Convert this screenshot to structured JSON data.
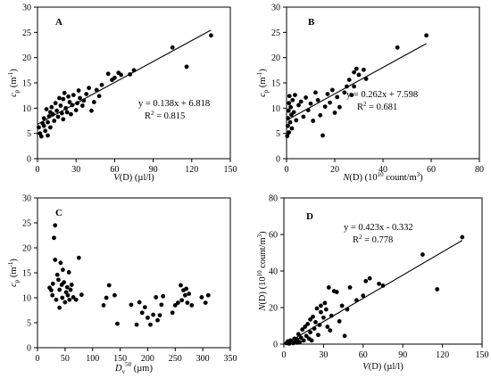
{
  "chart_data": [
    {
      "panel": "A",
      "type": "scatter",
      "xlabel_main": "V",
      "xlabel_rest": "(D)  (µl/l)",
      "ylabel_main": "c",
      "ylabel_sub": "p",
      "ylabel_rest": " (m",
      "ylabel_sup": "-1",
      "ylabel_close": ")",
      "xlim": [
        0,
        150
      ],
      "ylim": [
        0,
        30
      ],
      "xticks": [
        "0",
        "30",
        "60",
        "90",
        "120",
        "150"
      ],
      "yticks": [
        "0",
        "5",
        "10",
        "15",
        "20",
        "25",
        "30"
      ],
      "trend": {
        "slope": 0.138,
        "intercept": 6.818,
        "x_range": [
          0,
          135
        ]
      },
      "equation": "y = 0.138x + 6.818",
      "r2_label": "R",
      "r2_sup": "2",
      "r2_value": " = 0.815",
      "points": [
        [
          1,
          6.2
        ],
        [
          2,
          5.0
        ],
        [
          3,
          4.4
        ],
        [
          4,
          7.0
        ],
        [
          5,
          6.5
        ],
        [
          5,
          8.0
        ],
        [
          6,
          5.5
        ],
        [
          7,
          9.8
        ],
        [
          8,
          4.6
        ],
        [
          8,
          7.2
        ],
        [
          9,
          8.4
        ],
        [
          10,
          9.2
        ],
        [
          10,
          6.2
        ],
        [
          11,
          10.2
        ],
        [
          12,
          8.8
        ],
        [
          13,
          7.5
        ],
        [
          14,
          11.0
        ],
        [
          15,
          9.5
        ],
        [
          16,
          8.3
        ],
        [
          17,
          12.0
        ],
        [
          18,
          10.5
        ],
        [
          19,
          9.0
        ],
        [
          20,
          11.8
        ],
        [
          20,
          7.8
        ],
        [
          21,
          13.0
        ],
        [
          22,
          10.0
        ],
        [
          23,
          9.2
        ],
        [
          24,
          12.3
        ],
        [
          25,
          11.2
        ],
        [
          26,
          8.8
        ],
        [
          27,
          10.6
        ],
        [
          28,
          12.6
        ],
        [
          30,
          9.6
        ],
        [
          31,
          11.0
        ],
        [
          32,
          13.5
        ],
        [
          33,
          12.0
        ],
        [
          35,
          10.5
        ],
        [
          36,
          11.5
        ],
        [
          38,
          12.8
        ],
        [
          40,
          14.0
        ],
        [
          42,
          9.5
        ],
        [
          44,
          11.2
        ],
        [
          46,
          13.6
        ],
        [
          48,
          12.4
        ],
        [
          50,
          14.6
        ],
        [
          55,
          16.8
        ],
        [
          58,
          15.6
        ],
        [
          60,
          16.0
        ],
        [
          63,
          17.0
        ],
        [
          65,
          16.6
        ],
        [
          72,
          16.7
        ],
        [
          75,
          17.5
        ],
        [
          105,
          22.0
        ],
        [
          116,
          18.2
        ],
        [
          135,
          24.4
        ]
      ]
    },
    {
      "panel": "B",
      "type": "scatter",
      "xlabel_main": "N",
      "xlabel_rest": "(D)  (10",
      "xlabel_sup": "10",
      "xlabel_end": " count/m",
      "xlabel_sup2": "3",
      "xlabel_close": ")",
      "ylabel_main": "c",
      "ylabel_sub": "p",
      "ylabel_rest": " (m",
      "ylabel_sup": "-1",
      "ylabel_close": ")",
      "xlim": [
        0,
        80
      ],
      "ylim": [
        0,
        30
      ],
      "xticks": [
        "0",
        "20",
        "40",
        "60",
        "80"
      ],
      "yticks": [
        "0",
        "5",
        "10",
        "15",
        "20",
        "25",
        "30"
      ],
      "trend": {
        "slope": 0.262,
        "intercept": 7.598,
        "x_range": [
          0,
          58
        ]
      },
      "equation": "y = 0.262x + 7.598",
      "r2_label": "R",
      "r2_sup": "2",
      "r2_value": " = 0.681",
      "points": [
        [
          0.3,
          4.5
        ],
        [
          0.5,
          6.5
        ],
        [
          0.6,
          8.0
        ],
        [
          0.8,
          9.5
        ],
        [
          1.0,
          11.0
        ],
        [
          1.0,
          5.2
        ],
        [
          1.2,
          12.4
        ],
        [
          1.5,
          7.2
        ],
        [
          1.7,
          10.2
        ],
        [
          2.0,
          8.7
        ],
        [
          2.2,
          6.0
        ],
        [
          2.5,
          11.6
        ],
        [
          3.0,
          9.2
        ],
        [
          3.5,
          12.6
        ],
        [
          4.0,
          7.6
        ],
        [
          5.0,
          10.6
        ],
        [
          6.0,
          11.3
        ],
        [
          7.0,
          8.3
        ],
        [
          8.0,
          12.1
        ],
        [
          9.0,
          9.6
        ],
        [
          10,
          10.9
        ],
        [
          11,
          7.5
        ],
        [
          12,
          13.1
        ],
        [
          13,
          11.6
        ],
        [
          14,
          8.6
        ],
        [
          15,
          4.6
        ],
        [
          16,
          10.3
        ],
        [
          17,
          12.8
        ],
        [
          18,
          11.1
        ],
        [
          19,
          13.6
        ],
        [
          20,
          9.1
        ],
        [
          21,
          12.2
        ],
        [
          22,
          10.2
        ],
        [
          24,
          13.1
        ],
        [
          25,
          14.3
        ],
        [
          26,
          15.6
        ],
        [
          27,
          12.6
        ],
        [
          28,
          17.1
        ],
        [
          30,
          16.6
        ],
        [
          32,
          17.6
        ],
        [
          33,
          15.8
        ],
        [
          28,
          14.3
        ],
        [
          29,
          17.8
        ],
        [
          46,
          22.0
        ],
        [
          58,
          24.4
        ]
      ]
    },
    {
      "panel": "C",
      "type": "scatter",
      "xlabel_main": "D",
      "xlabel_sub": "v",
      "xlabel_sup": "50",
      "xlabel_rest": "  (µm)",
      "ylabel_main": "c",
      "ylabel_sub": "p",
      "ylabel_rest": " (m",
      "ylabel_sup": "-1",
      "ylabel_close": ")",
      "xlim": [
        0,
        350
      ],
      "ylim": [
        0,
        30
      ],
      "xticks": [
        "0",
        "50",
        "100",
        "150",
        "200",
        "250",
        "300",
        "350"
      ],
      "yticks": [
        "0",
        "5",
        "10",
        "15",
        "20",
        "25",
        "30"
      ],
      "points": [
        [
          22,
          12.0
        ],
        [
          25,
          11.5
        ],
        [
          27,
          10.5
        ],
        [
          28,
          12.8
        ],
        [
          30,
          22.0
        ],
        [
          32,
          24.5
        ],
        [
          32,
          17.6
        ],
        [
          34,
          9.6
        ],
        [
          36,
          14.6
        ],
        [
          38,
          13.6
        ],
        [
          40,
          11.6
        ],
        [
          40,
          8.0
        ],
        [
          42,
          17.0
        ],
        [
          44,
          12.6
        ],
        [
          45,
          10.0
        ],
        [
          46,
          15.6
        ],
        [
          48,
          13.1
        ],
        [
          50,
          9.1
        ],
        [
          52,
          11.1
        ],
        [
          54,
          12.1
        ],
        [
          55,
          10.5
        ],
        [
          57,
          15.1
        ],
        [
          58,
          9.6
        ],
        [
          60,
          11.6
        ],
        [
          62,
          12.6
        ],
        [
          65,
          10.1
        ],
        [
          70,
          9.6
        ],
        [
          75,
          18.0
        ],
        [
          80,
          10.6
        ],
        [
          120,
          8.5
        ],
        [
          125,
          10.0
        ],
        [
          130,
          12.5
        ],
        [
          140,
          10.5
        ],
        [
          145,
          4.8
        ],
        [
          170,
          8.6
        ],
        [
          180,
          4.6
        ],
        [
          185,
          9.1
        ],
        [
          190,
          7.0
        ],
        [
          195,
          8.1
        ],
        [
          200,
          6.0
        ],
        [
          205,
          4.6
        ],
        [
          210,
          6.6
        ],
        [
          215,
          10.1
        ],
        [
          218,
          5.5
        ],
        [
          222,
          6.5
        ],
        [
          225,
          8.6
        ],
        [
          228,
          10.3
        ],
        [
          245,
          7.0
        ],
        [
          250,
          8.5
        ],
        [
          255,
          9.0
        ],
        [
          260,
          12.5
        ],
        [
          262,
          9.5
        ],
        [
          265,
          11.5
        ],
        [
          268,
          10.5
        ],
        [
          270,
          11.8
        ],
        [
          272,
          9.0
        ],
        [
          275,
          10.8
        ],
        [
          280,
          8.5
        ],
        [
          298,
          10.1
        ],
        [
          305,
          9.0
        ],
        [
          310,
          10.5
        ]
      ]
    },
    {
      "panel": "D",
      "type": "scatter",
      "xlabel_main": "V",
      "xlabel_rest": "(D)  (µl/l)",
      "ylabel_main": "N",
      "ylabel_rest": "(D)  (10",
      "ylabel_sup": "10",
      "ylabel_end": " count/m",
      "ylabel_sup2": "3",
      "ylabel_close": ")",
      "xlim": [
        0,
        150
      ],
      "ylim": [
        0,
        80
      ],
      "xticks": [
        "0",
        "30",
        "60",
        "90",
        "120",
        "150"
      ],
      "yticks": [
        "0",
        "20",
        "40",
        "60",
        "80"
      ],
      "trend": {
        "slope": 0.423,
        "intercept": -0.332,
        "x_range": [
          0,
          135
        ]
      },
      "equation": "y = 0.423x - 0.332",
      "r2_label": "R",
      "r2_sup": "2",
      "r2_value": " = 0.778",
      "points": [
        [
          2,
          0.5
        ],
        [
          3,
          1.5
        ],
        [
          4,
          0.3
        ],
        [
          5,
          2.0
        ],
        [
          6,
          1.0
        ],
        [
          7,
          0.5
        ],
        [
          8,
          3.0
        ],
        [
          9,
          1.5
        ],
        [
          10,
          2.5
        ],
        [
          10,
          0.8
        ],
        [
          11,
          5.5
        ],
        [
          12,
          1.0
        ],
        [
          13,
          3.5
        ],
        [
          14,
          8.0
        ],
        [
          15,
          2.0
        ],
        [
          16,
          9.5
        ],
        [
          17,
          4.5
        ],
        [
          18,
          11.0
        ],
        [
          19,
          3.0
        ],
        [
          20,
          13.5
        ],
        [
          20,
          6.5
        ],
        [
          21,
          2.0
        ],
        [
          22,
          15.0
        ],
        [
          23,
          8.5
        ],
        [
          24,
          12.0
        ],
        [
          25,
          19.5
        ],
        [
          26,
          5.0
        ],
        [
          27,
          10.5
        ],
        [
          28,
          17.5
        ],
        [
          28,
          21.0
        ],
        [
          30,
          14.5
        ],
        [
          31,
          22.5
        ],
        [
          32,
          19.0
        ],
        [
          33,
          9.5
        ],
        [
          34,
          31.0
        ],
        [
          35,
          7.5
        ],
        [
          36,
          15.5
        ],
        [
          38,
          29.0
        ],
        [
          40,
          28.5
        ],
        [
          42,
          12.5
        ],
        [
          44,
          21.0
        ],
        [
          46,
          4.5
        ],
        [
          48,
          19.0
        ],
        [
          50,
          31.0
        ],
        [
          55,
          24.0
        ],
        [
          60,
          26.5
        ],
        [
          62,
          34.5
        ],
        [
          65,
          36.0
        ],
        [
          72,
          33.0
        ],
        [
          75,
          32.0
        ],
        [
          105,
          49.0
        ],
        [
          116,
          30.0
        ],
        [
          135,
          58.5
        ]
      ]
    }
  ]
}
